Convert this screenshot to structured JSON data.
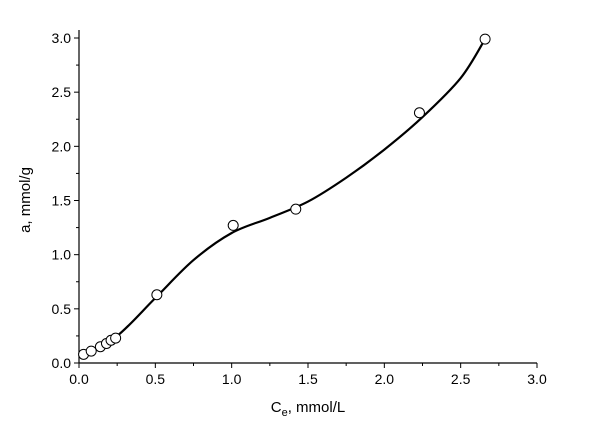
{
  "chart_data": {
    "type": "scatter",
    "title": "",
    "xlabel_main": "C",
    "xlabel_sub": "e",
    "xlabel_rest": ", mmol/L",
    "ylabel": "a, mmol/g",
    "xlim": [
      0,
      3.0
    ],
    "ylim": [
      0,
      3.0
    ],
    "xticks": [
      "0.0",
      "0.5",
      "1.0",
      "1.5",
      "2.0",
      "2.5",
      "3.0"
    ],
    "yticks": [
      "0.0",
      "0.5",
      "1.0",
      "1.5",
      "2.0",
      "2.5",
      "3.0"
    ],
    "grid": false,
    "points": [
      [
        0.03,
        0.08
      ],
      [
        0.08,
        0.11
      ],
      [
        0.14,
        0.15
      ],
      [
        0.18,
        0.18
      ],
      [
        0.21,
        0.21
      ],
      [
        0.24,
        0.23
      ],
      [
        0.51,
        0.63
      ],
      [
        1.01,
        1.27
      ],
      [
        1.42,
        1.42
      ],
      [
        2.23,
        2.31
      ],
      [
        2.66,
        2.99
      ]
    ],
    "fit_curve": [
      [
        0.03,
        0.07
      ],
      [
        0.25,
        0.25
      ],
      [
        0.5,
        0.6
      ],
      [
        0.75,
        0.95
      ],
      [
        1.0,
        1.2
      ],
      [
        1.25,
        1.34
      ],
      [
        1.5,
        1.49
      ],
      [
        1.75,
        1.71
      ],
      [
        2.0,
        1.97
      ],
      [
        2.25,
        2.27
      ],
      [
        2.5,
        2.63
      ],
      [
        2.66,
        2.99
      ]
    ],
    "marker": "open-circle",
    "line_color": "#000000"
  }
}
